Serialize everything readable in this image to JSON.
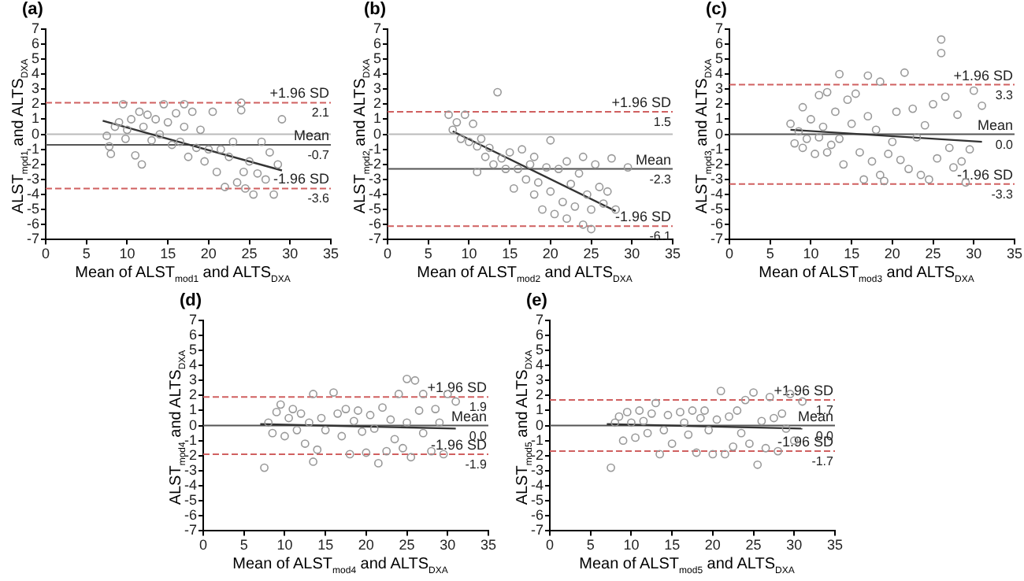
{
  "chart_data": [
    {
      "type": "scatter",
      "title": "(a)",
      "xlabel": "Mean of ALST$_{mod1}$ and ALTS$_{DXA}$",
      "ylabel": "ALST$_{mod1}$ and ALTS$_{DXA}$",
      "xlim": [
        0,
        35
      ],
      "xticks": [
        0,
        5,
        10,
        15,
        20,
        25,
        30,
        35
      ],
      "ylim": [
        -7,
        7
      ],
      "yticks": [
        -7,
        -6,
        -5,
        -4,
        -3,
        -2,
        -1,
        0,
        1,
        2,
        3,
        4,
        5,
        6,
        7
      ],
      "grid": false,
      "legend": false,
      "marker": "circle",
      "series": [
        {
          "type": "scatter",
          "color": "#999999",
          "x": [
            7.5,
            7.8,
            8,
            8.5,
            9,
            9.5,
            9.8,
            10,
            10.5,
            11,
            11.5,
            11.8,
            12,
            12.5,
            13,
            13.5,
            14,
            14.5,
            15,
            15.5,
            16,
            16.5,
            17,
            17,
            17.5,
            18,
            18.5,
            19,
            19.5,
            20,
            20.5,
            21,
            21.5,
            22,
            22.5,
            23,
            23.5,
            24,
            24,
            24.3,
            24.5,
            25,
            25.5,
            26,
            26.5,
            27,
            27.5,
            28,
            28.5,
            29
          ],
          "values": [
            -0.1,
            -0.8,
            -1.3,
            0.5,
            0.8,
            2,
            -0.3,
            0.3,
            1,
            -1.4,
            1.5,
            -2,
            0.5,
            1.3,
            -0.4,
            1,
            0,
            2,
            0.8,
            -0.7,
            1.4,
            -0.5,
            2,
            0.5,
            -1.5,
            1.5,
            -0.9,
            0.3,
            -1.8,
            -1,
            1.5,
            -2.5,
            -1,
            -3.5,
            -1.5,
            -0.5,
            -3.2,
            2.1,
            1.6,
            -2.5,
            -3.6,
            -1.8,
            -4,
            -2.6,
            -0.5,
            -3,
            -1.2,
            -4,
            -2,
            1
          ]
        },
        {
          "type": "line",
          "color": "#333333",
          "marker": "none",
          "x": [
            7,
            29
          ],
          "values": [
            0.9,
            -2.4
          ]
        }
      ],
      "ref_lines": [
        {
          "axis": "y",
          "value": 0,
          "color": "#bbbbbb",
          "line_style": "solid"
        },
        {
          "axis": "y",
          "value": -0.7,
          "label": "Mean",
          "color": "#555555",
          "line_style": "solid"
        },
        {
          "axis": "y",
          "value": 2.1,
          "label": "+1.96 SD",
          "color": "#d06060",
          "line_style": "dashed"
        },
        {
          "axis": "y",
          "value": -3.6,
          "label": "-1.96 SD",
          "color": "#d06060",
          "line_style": "dashed"
        }
      ],
      "annotations": [
        {
          "text": "2.1",
          "y": 2.1
        },
        {
          "text": "-0.7",
          "y": -0.7
        },
        {
          "text": "-3.6",
          "y": -3.6
        }
      ]
    },
    {
      "type": "scatter",
      "title": "(b)",
      "xlabel": "Mean of ALST$_{mod2}$ and ALTS$_{DXA}$",
      "ylabel": "ALST$_{mod2}$ and ALTS$_{DXA}$",
      "xlim": [
        0,
        35
      ],
      "xticks": [
        0,
        5,
        10,
        15,
        20,
        25,
        30,
        35
      ],
      "ylim": [
        -7,
        7
      ],
      "yticks": [
        -7,
        -6,
        -5,
        -4,
        -3,
        -2,
        -1,
        0,
        1,
        2,
        3,
        4,
        5,
        6,
        7
      ],
      "grid": false,
      "legend": false,
      "marker": "circle",
      "series": [
        {
          "type": "scatter",
          "color": "#999999",
          "x": [
            7.5,
            8,
            8.5,
            9,
            9.5,
            10,
            10.5,
            11,
            11,
            11.5,
            12,
            12.5,
            13,
            13.5,
            14,
            14.5,
            15,
            15.5,
            16,
            16.5,
            17,
            17.5,
            18,
            18,
            18.5,
            19,
            19.5,
            20,
            20,
            20.5,
            21,
            21.5,
            22,
            22,
            22.5,
            23,
            23.5,
            24,
            24,
            24.5,
            25,
            25,
            25.5,
            26,
            26.5,
            27,
            27.5,
            28,
            29.5
          ],
          "values": [
            1.3,
            0.3,
            0.8,
            -0.3,
            1.3,
            -0.5,
            0.7,
            -0.8,
            -2.5,
            -0.3,
            -1.5,
            -0.9,
            -2,
            2.8,
            -1.6,
            -2.3,
            -1.2,
            -3.6,
            -2.3,
            -1,
            -3,
            -2,
            -4,
            -1.5,
            -3.2,
            -5,
            -2.2,
            -0.4,
            -3.8,
            -5.3,
            -2.3,
            -4.5,
            -1.8,
            -5.6,
            -3.3,
            -4.8,
            -2.6,
            -1.5,
            -6,
            -4,
            -5,
            -6.3,
            -2,
            -3.5,
            -4.6,
            -3.8,
            -1.6,
            -5,
            -2.2
          ]
        },
        {
          "type": "line",
          "color": "#333333",
          "marker": "none",
          "x": [
            8,
            28
          ],
          "values": [
            0.2,
            -5.1
          ]
        }
      ],
      "ref_lines": [
        {
          "axis": "y",
          "value": 0,
          "color": "#bbbbbb",
          "line_style": "solid"
        },
        {
          "axis": "y",
          "value": -2.3,
          "label": "Mean",
          "color": "#555555",
          "line_style": "solid"
        },
        {
          "axis": "y",
          "value": 1.5,
          "label": "+1.96 SD",
          "color": "#d06060",
          "line_style": "dashed"
        },
        {
          "axis": "y",
          "value": -6.1,
          "label": "-1.96 SD",
          "color": "#d06060",
          "line_style": "dashed"
        }
      ],
      "annotations": [
        {
          "text": "1.5",
          "y": 1.5
        },
        {
          "text": "-2.3",
          "y": -2.3
        },
        {
          "text": "-6.1",
          "y": -6.1
        }
      ]
    },
    {
      "type": "scatter",
      "title": "(c)",
      "xlabel": "Mean of ALST$_{mod3}$ and ALTS$_{DXA}$",
      "ylabel": "ALST$_{mod3}$ and ALTS$_{DXA}$",
      "xlim": [
        0,
        35
      ],
      "xticks": [
        0,
        5,
        10,
        15,
        20,
        25,
        30,
        35
      ],
      "ylim": [
        -7,
        7
      ],
      "yticks": [
        -7,
        -6,
        -5,
        -4,
        -3,
        -2,
        -1,
        0,
        1,
        2,
        3,
        4,
        5,
        6,
        7
      ],
      "grid": false,
      "legend": false,
      "marker": "circle",
      "series": [
        {
          "type": "scatter",
          "color": "#999999",
          "x": [
            7.5,
            8,
            8.5,
            9,
            9,
            9.5,
            10,
            10.5,
            11,
            11,
            11.5,
            12,
            12,
            12.5,
            13,
            13.5,
            13.5,
            14,
            14.5,
            15,
            15.5,
            16,
            16.5,
            17,
            17,
            17.5,
            18,
            18.5,
            18.5,
            19,
            19.5,
            20,
            20.5,
            21,
            21.5,
            22,
            22.5,
            23,
            23.5,
            24,
            24.5,
            25,
            25.5,
            26,
            26,
            26.5,
            27,
            27.5,
            28,
            28.5,
            29,
            29.5,
            30,
            31
          ],
          "values": [
            0.7,
            -0.6,
            0.2,
            1.8,
            -0.9,
            -0.3,
            1,
            -1.3,
            2.6,
            -0.2,
            0.5,
            2.8,
            -1.2,
            -0.7,
            1.5,
            4,
            -0.3,
            -2,
            2.3,
            0.7,
            2.7,
            -1.2,
            -3,
            3.9,
            1.2,
            -1.8,
            0.3,
            3.5,
            -2.7,
            -3.1,
            -1.3,
            -0.5,
            1.5,
            -1.7,
            4.1,
            -2.3,
            1.7,
            -0.2,
            -2.7,
            0.6,
            -3,
            2,
            -1.6,
            6.3,
            5.4,
            2.5,
            -0.9,
            -2.2,
            1.3,
            -1.8,
            -3.2,
            -1,
            2.9,
            1.9
          ]
        },
        {
          "type": "line",
          "color": "#333333",
          "marker": "none",
          "x": [
            7.5,
            31
          ],
          "values": [
            0.3,
            -0.5
          ]
        }
      ],
      "ref_lines": [
        {
          "axis": "y",
          "value": 0.0,
          "label": "Mean",
          "color": "#555555",
          "line_style": "solid"
        },
        {
          "axis": "y",
          "value": 3.3,
          "label": "+1.96 SD",
          "color": "#d06060",
          "line_style": "dashed"
        },
        {
          "axis": "y",
          "value": -3.3,
          "label": "-1.96 SD",
          "color": "#d06060",
          "line_style": "dashed"
        }
      ],
      "annotations": [
        {
          "text": "3.3",
          "y": 3.3
        },
        {
          "text": "0.0",
          "y": 0.0
        },
        {
          "text": "-3.3",
          "y": -3.3
        }
      ]
    },
    {
      "type": "scatter",
      "title": "(d)",
      "xlabel": "Mean of ALST$_{mod4}$ and ALTS$_{DXA}$",
      "ylabel": "ALST$_{mod4}$ and ALTS$_{DXA}$",
      "xlim": [
        0,
        35
      ],
      "xticks": [
        0,
        5,
        10,
        15,
        20,
        25,
        30,
        35
      ],
      "ylim": [
        -7,
        7
      ],
      "yticks": [
        -7,
        -6,
        -5,
        -4,
        -3,
        -2,
        -1,
        0,
        1,
        2,
        3,
        4,
        5,
        6,
        7
      ],
      "grid": false,
      "legend": false,
      "marker": "circle",
      "series": [
        {
          "type": "scatter",
          "color": "#999999",
          "x": [
            7.5,
            8,
            8.5,
            9,
            9.5,
            10,
            10.5,
            11,
            11.5,
            12,
            12.5,
            13,
            13.5,
            13.5,
            14,
            14.5,
            15,
            16,
            16.5,
            17,
            17.5,
            18,
            18.5,
            19,
            19.5,
            20,
            20.5,
            21,
            21.5,
            22,
            22.5,
            23,
            23.5,
            24,
            24.5,
            25,
            25,
            25.5,
            26,
            26.5,
            27,
            27,
            28,
            28.5,
            29,
            29.5,
            30,
            31
          ],
          "values": [
            -2.8,
            0.2,
            -0.5,
            0.9,
            1.4,
            -0.7,
            0.5,
            1.1,
            -0.3,
            0.8,
            -1.2,
            0.2,
            2.1,
            -2.4,
            -1.6,
            0.5,
            -0.3,
            2.2,
            0.8,
            -0.7,
            1.1,
            -1.9,
            0.3,
            1,
            -0.4,
            -1.8,
            0.7,
            -0.2,
            -2.5,
            1.2,
            -1.7,
            0.4,
            -0.9,
            2.1,
            -1.5,
            3.1,
            0.2,
            -2.1,
            3,
            1,
            2.1,
            -0.5,
            -1.7,
            1.1,
            0.2,
            -1.9,
            2.1,
            1.6
          ]
        },
        {
          "type": "line",
          "color": "#333333",
          "marker": "none",
          "x": [
            7,
            31
          ],
          "values": [
            0.1,
            -0.2
          ]
        }
      ],
      "ref_lines": [
        {
          "axis": "y",
          "value": 0.0,
          "label": "Mean",
          "color": "#555555",
          "line_style": "solid"
        },
        {
          "axis": "y",
          "value": 1.9,
          "label": "+1.96 SD",
          "color": "#d06060",
          "line_style": "dashed"
        },
        {
          "axis": "y",
          "value": -1.9,
          "label": "-1.96 SD",
          "color": "#d06060",
          "line_style": "dashed"
        }
      ],
      "annotations": [
        {
          "text": "1.9",
          "y": 1.9
        },
        {
          "text": "0.0",
          "y": 0.0
        },
        {
          "text": "-1.9",
          "y": -1.9
        }
      ]
    },
    {
      "type": "scatter",
      "title": "(e)",
      "xlabel": "Mean of ALST$_{mod5}$ and ALTS$_{DXA}$",
      "ylabel": "ALST$_{mod5}$ and ALTS$_{DXA}$",
      "xlim": [
        0,
        35
      ],
      "xticks": [
        0,
        5,
        10,
        15,
        20,
        25,
        30,
        35
      ],
      "ylim": [
        -7,
        7
      ],
      "yticks": [
        -7,
        -6,
        -5,
        -4,
        -3,
        -2,
        -1,
        0,
        1,
        2,
        3,
        4,
        5,
        6,
        7
      ],
      "grid": false,
      "legend": false,
      "marker": "circle",
      "series": [
        {
          "type": "scatter",
          "color": "#999999",
          "x": [
            7.5,
            8,
            8.5,
            9,
            9.5,
            10,
            10.5,
            11,
            11.5,
            12,
            12.5,
            13,
            13.5,
            14,
            14.5,
            15,
            16,
            16.5,
            17,
            17.5,
            18,
            18.5,
            19,
            19.5,
            20,
            20.5,
            21,
            21.5,
            22,
            22.5,
            23,
            23.5,
            24,
            24.5,
            25,
            25.5,
            26,
            26.5,
            27,
            27.5,
            28,
            28.5,
            29,
            29.5,
            30,
            31
          ],
          "values": [
            -2.8,
            0.2,
            0.6,
            -1,
            0.9,
            0.2,
            -0.8,
            1,
            0.3,
            -0.5,
            0.8,
            1.5,
            -1.9,
            -0.3,
            0.7,
            -1.2,
            0.9,
            0.2,
            -0.6,
            1,
            -1.8,
            0.5,
            1,
            -0.3,
            -1.9,
            0.4,
            2.3,
            -1.9,
            0.6,
            -1.4,
            1,
            -0.5,
            1.7,
            -1.2,
            2.2,
            -2.6,
            0.3,
            -1.5,
            1.9,
            0.5,
            -1.7,
            0.8,
            -0.2,
            2.1,
            -1,
            1.6
          ]
        },
        {
          "type": "line",
          "color": "#333333",
          "marker": "none",
          "x": [
            7,
            31
          ],
          "values": [
            0.1,
            -0.2
          ]
        }
      ],
      "ref_lines": [
        {
          "axis": "y",
          "value": 0.0,
          "label": "Mean",
          "color": "#555555",
          "line_style": "solid"
        },
        {
          "axis": "y",
          "value": 1.7,
          "label": "+1.96 SD",
          "color": "#d06060",
          "line_style": "dashed"
        },
        {
          "axis": "y",
          "value": -1.7,
          "label": "-1.96 SD",
          "color": "#d06060",
          "line_style": "dashed"
        }
      ],
      "annotations": [
        {
          "text": "1.7",
          "y": 1.7
        },
        {
          "text": "0.0",
          "y": 0.0
        },
        {
          "text": "-1.7",
          "y": -1.7
        }
      ]
    }
  ]
}
